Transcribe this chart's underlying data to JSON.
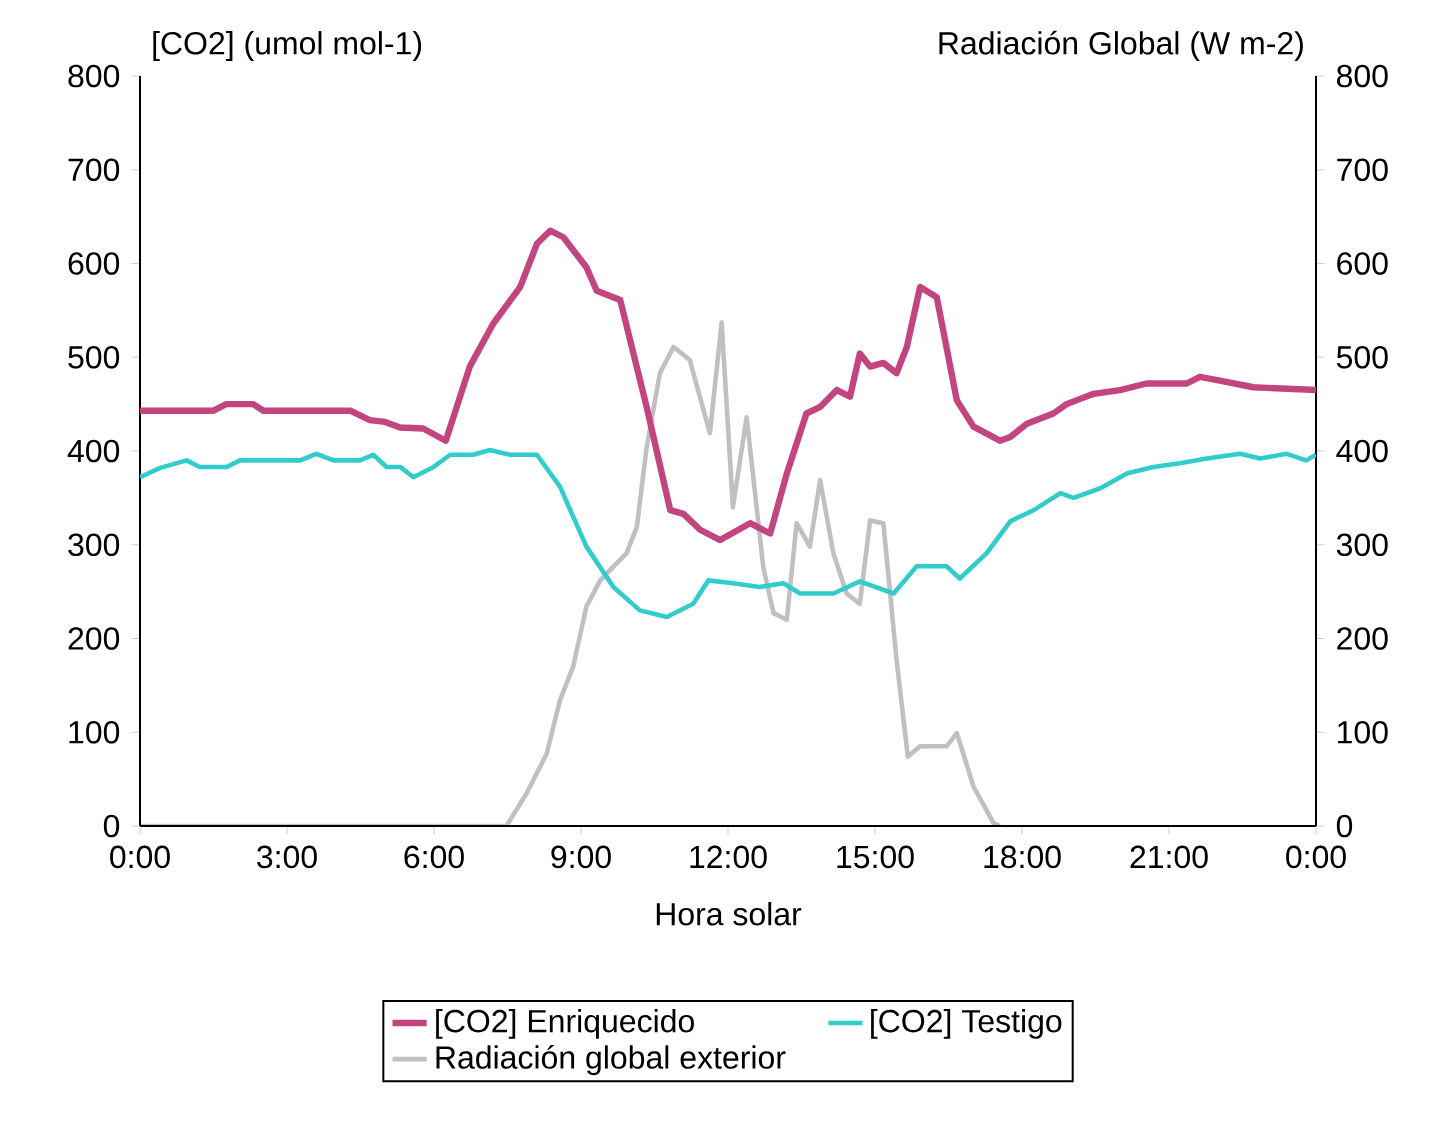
{
  "chart_data": {
    "type": "line",
    "xlabel": "Hora solar",
    "ylabel": "[CO2] (umol mol-1)",
    "y2label": "Radiación Global (W m-2)",
    "xlim": [
      0,
      24
    ],
    "xticks": [
      {
        "value": 0,
        "label": "0:00"
      },
      {
        "value": 3,
        "label": "3:00"
      },
      {
        "value": 6,
        "label": "6:00"
      },
      {
        "value": 9,
        "label": "9:00"
      },
      {
        "value": 12,
        "label": "12:00"
      },
      {
        "value": 15,
        "label": "15:00"
      },
      {
        "value": 18,
        "label": "18:00"
      },
      {
        "value": 21,
        "label": "21:00"
      },
      {
        "value": 24,
        "label": "0:00"
      }
    ],
    "ylim": [
      0,
      800
    ],
    "yticks": [
      0,
      100,
      200,
      300,
      400,
      500,
      600,
      700,
      800
    ],
    "y2lim": [
      0,
      800
    ],
    "y2ticks": [
      0,
      100,
      200,
      300,
      400,
      500,
      600,
      700,
      800
    ],
    "grid": false,
    "legend": "bottom",
    "marker": "none",
    "line_style": "solid",
    "series": [
      {
        "name": "[CO2] Enriquecido",
        "color": "#c2457f",
        "x": [
          0,
          1.5,
          1.76,
          2.31,
          2.52,
          4.29,
          4.69,
          5.0,
          5.31,
          5.78,
          6.24,
          6.73,
          7.21,
          7.76,
          8.1,
          8.37,
          8.64,
          9.11,
          9.32,
          9.8,
          10.34,
          10.82,
          11.09,
          11.43,
          11.84,
          12.45,
          12.86,
          13.2,
          13.6,
          13.88,
          14.22,
          14.49,
          14.69,
          14.9,
          15.17,
          15.44,
          15.65,
          15.92,
          16.26,
          16.67,
          17.01,
          17.55,
          17.76,
          18.1,
          18.64,
          18.91,
          19.46,
          20.0,
          20.54,
          21.36,
          21.63,
          22.04,
          22.72,
          24.0
        ],
        "values": [
          443,
          443,
          450,
          450,
          443,
          443,
          433,
          431,
          425,
          424,
          411,
          490,
          536,
          575,
          621,
          635,
          628,
          596,
          571,
          561,
          447,
          337,
          333,
          316,
          305,
          323,
          312,
          376,
          440,
          447,
          465,
          458,
          504,
          490,
          494,
          483,
          511,
          575,
          564,
          454,
          426,
          411,
          415,
          429,
          440,
          450,
          461,
          465,
          472,
          472,
          479,
          475,
          468,
          465
        ]
      },
      {
        "name": "[CO2] Testigo",
        "color": "#33cccc",
        "x": [
          0,
          0.41,
          0.95,
          1.22,
          1.77,
          2.04,
          3.27,
          3.6,
          3.95,
          4.49,
          4.76,
          5.03,
          5.31,
          5.58,
          5.99,
          6.33,
          6.8,
          7.14,
          7.55,
          8.1,
          8.57,
          9.11,
          9.66,
          10.2,
          10.75,
          11.29,
          11.6,
          12.1,
          12.65,
          13.13,
          13.47,
          14.15,
          14.69,
          15.38,
          15.85,
          16.46,
          16.73,
          17.28,
          17.76,
          18.24,
          18.78,
          19.05,
          19.59,
          20.14,
          20.68,
          21.22,
          21.77,
          22.45,
          22.86,
          23.4,
          23.8,
          24.0
        ],
        "values": [
          372,
          382,
          390,
          383,
          383,
          390,
          390,
          397,
          390,
          390,
          396,
          383,
          383,
          372,
          383,
          396,
          396,
          401,
          396,
          396,
          362,
          298,
          255,
          230,
          223,
          237,
          262,
          259,
          255,
          259,
          248,
          248,
          261,
          248,
          277,
          277,
          264,
          291,
          325,
          337,
          355,
          350,
          360,
          376,
          383,
          387,
          392,
          397,
          392,
          397,
          390,
          396
        ]
      },
      {
        "name": "Radiación global exterior",
        "color": "#c0c0c0",
        "axis": "y2",
        "x": [
          0,
          7.48,
          7.89,
          8.3,
          8.57,
          8.84,
          9.11,
          9.39,
          9.93,
          10.14,
          10.34,
          10.61,
          10.89,
          11.22,
          11.63,
          11.87,
          12.1,
          12.38,
          12.72,
          12.93,
          13.2,
          13.4,
          13.67,
          13.88,
          14.15,
          14.42,
          14.69,
          14.9,
          15.17,
          15.44,
          15.67,
          15.92,
          16.46,
          16.67,
          17.01,
          17.42,
          17.55
        ],
        "values": [
          0,
          0,
          35,
          77,
          134,
          170,
          234,
          262,
          291,
          319,
          404,
          483,
          511,
          497,
          419,
          537,
          340,
          436,
          276,
          227,
          220,
          323,
          298,
          369,
          291,
          248,
          237,
          326,
          323,
          177,
          74,
          85,
          85,
          99,
          42,
          3,
          0
        ]
      }
    ]
  }
}
